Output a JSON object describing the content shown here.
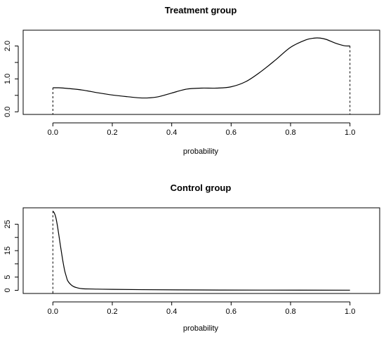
{
  "chart_data": [
    {
      "type": "line",
      "title": "Treatment group",
      "xlabel": "probability",
      "ylabel": "",
      "xlim": [
        -0.1,
        1.1
      ],
      "ylim": [
        -0.08,
        2.48
      ],
      "xticks": [
        0,
        0.2,
        0.4,
        0.6,
        0.8,
        1
      ],
      "xtick_labels": [
        "0.0",
        "0.2",
        "0.4",
        "0.6",
        "0.8",
        "1.0"
      ],
      "yticks": [
        0,
        0.5,
        1,
        1.5,
        2
      ],
      "ytick_labels": [
        "0.0",
        "",
        "1.0",
        "",
        "2.0"
      ],
      "x": [
        0.0,
        0.02,
        0.05,
        0.1,
        0.15,
        0.2,
        0.25,
        0.3,
        0.35,
        0.4,
        0.45,
        0.5,
        0.55,
        0.6,
        0.65,
        0.7,
        0.75,
        0.8,
        0.85,
        0.88,
        0.9,
        0.92,
        0.95,
        0.98,
        1.0
      ],
      "y": [
        0.73,
        0.73,
        0.71,
        0.66,
        0.58,
        0.51,
        0.46,
        0.42,
        0.45,
        0.57,
        0.69,
        0.72,
        0.72,
        0.76,
        0.92,
        1.22,
        1.58,
        1.96,
        2.18,
        2.24,
        2.24,
        2.2,
        2.09,
        2.01,
        2.0
      ],
      "boundary_lines": [
        {
          "x": 0.0,
          "y": 0.73
        },
        {
          "x": 1.0,
          "y": 2.0
        }
      ]
    },
    {
      "type": "line",
      "title": "Control group",
      "xlabel": "probability",
      "ylabel": "",
      "xlim": [
        -0.1,
        1.1
      ],
      "ylim": [
        -1.2,
        31.2
      ],
      "xticks": [
        0,
        0.2,
        0.4,
        0.6,
        0.8,
        1
      ],
      "xtick_labels": [
        "0.0",
        "0.2",
        "0.4",
        "0.6",
        "0.8",
        "1.0"
      ],
      "yticks": [
        0,
        5,
        10,
        15,
        20,
        25
      ],
      "ytick_labels": [
        "0",
        "5",
        "",
        "15",
        "",
        "25"
      ],
      "x": [
        0.0,
        0.005,
        0.01,
        0.015,
        0.02,
        0.025,
        0.03,
        0.035,
        0.04,
        0.045,
        0.05,
        0.06,
        0.07,
        0.08,
        0.1,
        0.15,
        0.2,
        0.3,
        0.5,
        0.7,
        1.0
      ],
      "y": [
        30,
        29.2,
        27.5,
        24.6,
        21,
        17.2,
        13.6,
        10.2,
        7.3,
        5.3,
        3.6,
        2.2,
        1.4,
        1.0,
        0.6,
        0.45,
        0.35,
        0.25,
        0.12,
        0.08,
        0.05
      ],
      "boundary_lines": [
        {
          "x": 0.0,
          "y": 30
        }
      ]
    }
  ]
}
